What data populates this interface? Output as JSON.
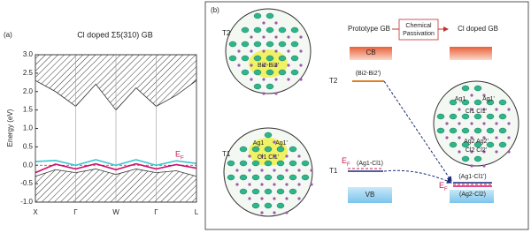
{
  "panel_a": {
    "label": "(a)",
    "title": "Cl doped Σ5(310) GB",
    "y_label": "Energy (eV)",
    "x": [
      0,
      0.5,
      1,
      1.5,
      2,
      2.5,
      3,
      3.5,
      4
    ],
    "xlim": [
      0,
      4
    ],
    "xticks": [
      {
        "value": 0,
        "label": "X"
      },
      {
        "value": 1,
        "label": "Γ"
      },
      {
        "value": 2,
        "label": "W"
      },
      {
        "value": 3,
        "label": "Γ"
      },
      {
        "value": 4,
        "label": "L"
      }
    ],
    "ylim": [
      -1,
      3
    ],
    "yticks": [
      {
        "value": -1,
        "label": "-1.0"
      },
      {
        "value": -0.5,
        "label": "-0.5"
      },
      {
        "value": 0,
        "label": "0.0"
      },
      {
        "value": 0.5,
        "label": "0.5"
      },
      {
        "value": 1,
        "label": "1.0"
      },
      {
        "value": 1.5,
        "label": "1.5"
      },
      {
        "value": 2,
        "label": "2.0"
      },
      {
        "value": 2.5,
        "label": "2.5"
      },
      {
        "value": 3,
        "label": "3.0"
      }
    ],
    "fermi_level": 0,
    "fermi_label": "E",
    "fermi_subscript": "F",
    "conduction_edge": [
      2.3,
      2.0,
      1.6,
      2.2,
      1.5,
      2.1,
      1.6,
      1.9,
      2.3
    ],
    "valence_edge": [
      -0.3,
      -0.12,
      -0.2,
      -0.1,
      -0.25,
      -0.1,
      -0.2,
      -0.15,
      -0.3
    ],
    "bands": [
      {
        "color": "#3cc6d2",
        "values": [
          0.1,
          0.13,
          0.0,
          0.15,
          0.0,
          0.15,
          0.0,
          0.12,
          0.05
        ]
      },
      {
        "color": "#d0106a",
        "values": [
          -0.2,
          0.03,
          -0.1,
          0.04,
          -0.12,
          0.04,
          -0.1,
          0.02,
          -0.08
        ]
      }
    ]
  },
  "panel_b": {
    "label": "(b)",
    "header": {
      "left": "Prototype GB",
      "process": [
        "Chemical",
        "Passivation"
      ],
      "right": "Cl doped GB"
    },
    "cb": "CB",
    "vb": "VB",
    "levels": [
      {
        "name": "T2",
        "bond": "(Bi2-Bi2')"
      },
      {
        "name": "T1",
        "bond": "(Ag1-Cl1)"
      }
    ],
    "fermi_label": "E",
    "fermi_subscript": "F",
    "doped_levels": [
      "(Ag1-Cl1')",
      "(Ag2-Cl2)"
    ],
    "insets": [
      {
        "label": "T2",
        "atoms": [
          "Bi2-Bi2'"
        ]
      },
      {
        "label": "T1",
        "atoms": [
          "Ag1",
          "Ag1'",
          "Cl1 Cl1'"
        ]
      },
      {
        "atoms": [
          "Ag1",
          "Ag1'",
          "Cl1 Cl1'",
          "Ag2 Ag2'",
          "Cl2 Cl2'"
        ]
      }
    ]
  }
}
